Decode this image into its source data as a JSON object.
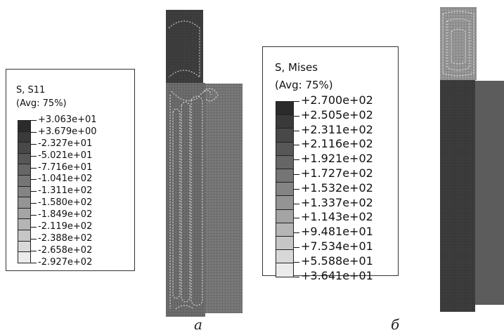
{
  "panel_a": {
    "legend": {
      "title_line1": "S, S11",
      "title_line2": "(Avg: 75%)",
      "values": [
        "+3.063e+01",
        "+3.679e+00",
        "-2.327e+01",
        "-5.021e+01",
        "-7.716e+01",
        "-1.041e+02",
        "-1.311e+02",
        "-1.580e+02",
        "-1.849e+02",
        "-2.119e+02",
        "-2.388e+02",
        "-2.658e+02",
        "-2.927e+02"
      ],
      "colors": [
        "#2b2b2b",
        "#3a3a3a",
        "#484848",
        "#575757",
        "#666666",
        "#757575",
        "#848484",
        "#949494",
        "#a4a4a4",
        "#b5b5b5",
        "#c6c6c6",
        "#d8d8d8",
        "#ebebeb"
      ]
    },
    "caption": "а"
  },
  "panel_b": {
    "legend": {
      "title_line1": "S, Mises",
      "title_line2": "(Avg: 75%)",
      "values": [
        "+2.700e+02",
        "+2.505e+02",
        "+2.311e+02",
        "+2.116e+02",
        "+1.921e+02",
        "+1.727e+02",
        "+1.532e+02",
        "+1.337e+02",
        "+1.143e+02",
        "+9.481e+01",
        "+7.534e+01",
        "+5.588e+01",
        "+3.641e+01"
      ],
      "colors": [
        "#2b2b2b",
        "#3a3a3a",
        "#484848",
        "#575757",
        "#666666",
        "#757575",
        "#848484",
        "#949494",
        "#a4a4a4",
        "#b5b5b5",
        "#c6c6c6",
        "#d8d8d8",
        "#ebebeb"
      ]
    },
    "caption": "б"
  },
  "model_colors": {
    "a_top": "#3f3f3f",
    "a_body": "#6e6e6e",
    "a_right": "#7a7a7a",
    "b_top": "#9a9a9a",
    "b_body": "#3d3d3d",
    "b_right": "#5c5c5c"
  }
}
